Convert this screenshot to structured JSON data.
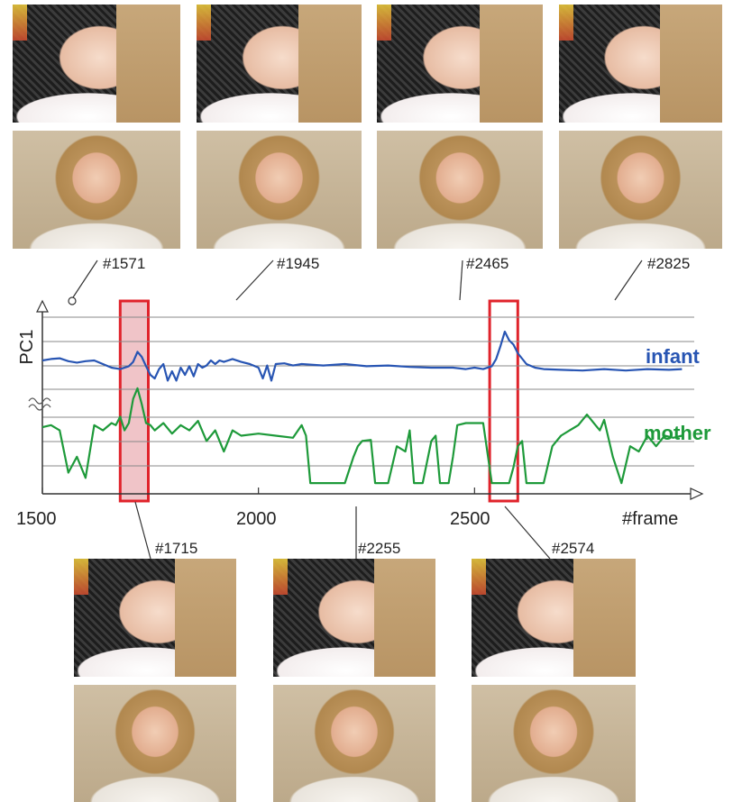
{
  "colors": {
    "infant": "#2855b3",
    "mother": "#1e9a3a",
    "highlight_fill": "#f0c4c8",
    "highlight_stroke": "#e0232b",
    "grid": "#888888"
  },
  "frames_top": [
    "#1571",
    "#1945",
    "#2465",
    "#2825"
  ],
  "frames_bottom": [
    "#1715",
    "#2255",
    "#2574"
  ],
  "chart_data": {
    "type": "line",
    "ylabel": "PC1",
    "xlabel": "#frame",
    "xlim": [
      1500,
      3000
    ],
    "x_ticks": [
      1500,
      2000,
      2500
    ],
    "grid": true,
    "highlight_ranges": [
      [
        1680,
        1745
      ],
      [
        2535,
        2600
      ]
    ],
    "series": [
      {
        "name": "infant",
        "x": [
          1500,
          1520,
          1540,
          1560,
          1580,
          1600,
          1620,
          1640,
          1660,
          1680,
          1700,
          1710,
          1720,
          1730,
          1740,
          1750,
          1760,
          1770,
          1780,
          1790,
          1800,
          1810,
          1820,
          1830,
          1840,
          1850,
          1860,
          1870,
          1880,
          1890,
          1900,
          1910,
          1920,
          1940,
          1960,
          1980,
          2000,
          2010,
          2020,
          2030,
          2040,
          2060,
          2080,
          2100,
          2150,
          2200,
          2250,
          2300,
          2350,
          2400,
          2450,
          2480,
          2500,
          2520,
          2540,
          2550,
          2560,
          2570,
          2580,
          2590,
          2600,
          2620,
          2640,
          2660,
          2700,
          2750,
          2800,
          2850,
          2900,
          2950,
          2980
        ],
        "values": [
          0.4,
          0.42,
          0.43,
          0.39,
          0.37,
          0.39,
          0.4,
          0.35,
          0.3,
          0.28,
          0.32,
          0.38,
          0.52,
          0.45,
          0.32,
          0.2,
          0.15,
          0.28,
          0.35,
          0.12,
          0.25,
          0.12,
          0.3,
          0.2,
          0.32,
          0.18,
          0.35,
          0.3,
          0.33,
          0.4,
          0.35,
          0.4,
          0.38,
          0.42,
          0.38,
          0.35,
          0.3,
          0.15,
          0.33,
          0.12,
          0.35,
          0.36,
          0.33,
          0.35,
          0.33,
          0.35,
          0.32,
          0.33,
          0.31,
          0.3,
          0.3,
          0.28,
          0.3,
          0.28,
          0.32,
          0.42,
          0.6,
          0.8,
          0.68,
          0.62,
          0.5,
          0.35,
          0.3,
          0.28,
          0.27,
          0.26,
          0.28,
          0.26,
          0.28,
          0.27,
          0.28
        ]
      },
      {
        "name": "mother",
        "x": [
          1500,
          1520,
          1540,
          1560,
          1580,
          1600,
          1620,
          1640,
          1660,
          1670,
          1680,
          1690,
          1700,
          1710,
          1720,
          1730,
          1740,
          1750,
          1760,
          1780,
          1800,
          1820,
          1840,
          1860,
          1880,
          1900,
          1920,
          1940,
          1960,
          2000,
          2040,
          2080,
          2100,
          2110,
          2120,
          2130,
          2140,
          2160,
          2180,
          2200,
          2220,
          2230,
          2240,
          2260,
          2270,
          2280,
          2300,
          2320,
          2340,
          2350,
          2360,
          2380,
          2400,
          2410,
          2420,
          2440,
          2450,
          2460,
          2480,
          2500,
          2520,
          2540,
          2560,
          2580,
          2590,
          2600,
          2610,
          2620,
          2640,
          2660,
          2680,
          2700,
          2720,
          2740,
          2760,
          2780,
          2790,
          2800,
          2820,
          2840,
          2860,
          2880,
          2900,
          2920,
          2940,
          2960,
          2980
        ],
        "values": [
          0.58,
          0.6,
          0.55,
          0.15,
          0.3,
          0.1,
          0.6,
          0.55,
          0.62,
          0.6,
          0.68,
          0.55,
          0.62,
          0.85,
          0.95,
          0.8,
          0.62,
          0.6,
          0.55,
          0.62,
          0.52,
          0.6,
          0.55,
          0.64,
          0.45,
          0.55,
          0.35,
          0.55,
          0.5,
          0.52,
          0.5,
          0.48,
          0.6,
          0.5,
          0.05,
          0.05,
          0.05,
          0.05,
          0.05,
          0.05,
          0.3,
          0.4,
          0.45,
          0.46,
          0.05,
          0.05,
          0.05,
          0.4,
          0.35,
          0.55,
          0.05,
          0.05,
          0.45,
          0.5,
          0.05,
          0.05,
          0.3,
          0.6,
          0.62,
          0.62,
          0.62,
          0.05,
          0.05,
          0.05,
          0.2,
          0.4,
          0.45,
          0.05,
          0.05,
          0.05,
          0.4,
          0.5,
          0.55,
          0.6,
          0.7,
          0.6,
          0.55,
          0.65,
          0.3,
          0.05,
          0.4,
          0.35,
          0.5,
          0.4,
          0.5,
          0.48,
          0.5
        ]
      }
    ]
  }
}
